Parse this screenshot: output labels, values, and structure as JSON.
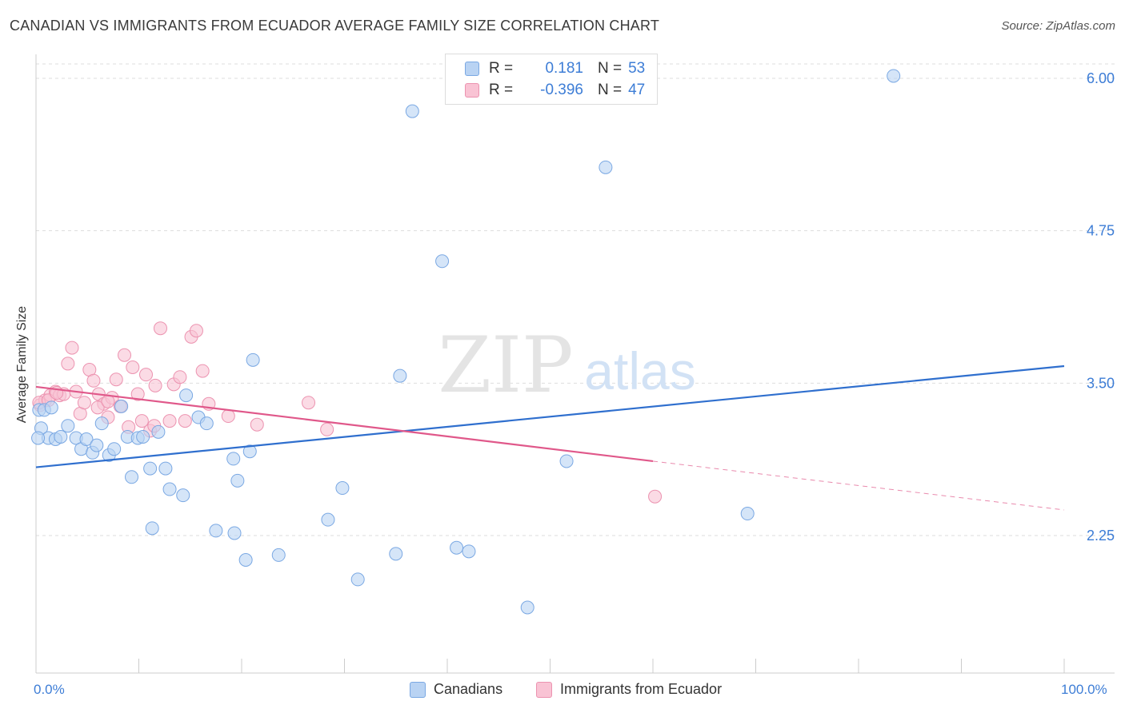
{
  "title": "CANADIAN VS IMMIGRANTS FROM ECUADOR AVERAGE FAMILY SIZE CORRELATION CHART",
  "source": "Source: ZipAtlas.com",
  "watermark": {
    "zip": "ZIP",
    "atlas": "atlas"
  },
  "legend": {
    "rows": [
      {
        "r_label": "R =",
        "r_value": "0.181",
        "n_label": "N =",
        "n_value": "53"
      },
      {
        "r_label": "R =",
        "r_value": "-0.396",
        "n_label": "N =",
        "n_value": "47"
      }
    ]
  },
  "bottom_legend": {
    "canadians": "Canadians",
    "ecuador": "Immigrants from Ecuador"
  },
  "colors": {
    "blue_fill": "#b9d3f3",
    "blue_stroke": "#7aa8e3",
    "blue_line": "#2f6fce",
    "pink_fill": "#f9c3d4",
    "pink_stroke": "#ec93b0",
    "pink_line": "#e0588a",
    "tick_label": "#3d7dd6",
    "grid": "#dddddd"
  },
  "chart_data": {
    "type": "scatter",
    "title": "CANADIAN VS IMMIGRANTS FROM ECUADOR AVERAGE FAMILY SIZE CORRELATION CHART",
    "xlabel": "",
    "ylabel": "Average Family Size",
    "xlim": [
      0,
      100
    ],
    "ylim": [
      1.1,
      6.2
    ],
    "x_tick_labels": [
      "0.0%",
      "100.0%"
    ],
    "y_ticks": [
      2.25,
      3.5,
      4.75,
      6.0
    ],
    "y_tick_labels": [
      "2.25",
      "3.50",
      "4.75",
      "6.00"
    ],
    "grid": true,
    "legend_position": "top-center",
    "series": [
      {
        "name": "Canadians",
        "r": 0.181,
        "n": 53,
        "trend": {
          "x0": 0,
          "y0": 2.81,
          "x1": 100,
          "y1": 3.64
        },
        "points": [
          [
            0.5,
            3.13
          ],
          [
            1.2,
            3.05
          ],
          [
            1.9,
            3.04
          ],
          [
            2.4,
            3.06
          ],
          [
            3.1,
            3.15
          ],
          [
            3.9,
            3.05
          ],
          [
            4.4,
            2.96
          ],
          [
            4.9,
            3.04
          ],
          [
            5.5,
            2.93
          ],
          [
            5.9,
            2.99
          ],
          [
            6.4,
            3.17
          ],
          [
            7.1,
            2.91
          ],
          [
            7.6,
            2.96
          ],
          [
            8.3,
            3.31
          ],
          [
            8.9,
            3.06
          ],
          [
            9.3,
            2.73
          ],
          [
            9.9,
            3.05
          ],
          [
            10.4,
            3.06
          ],
          [
            11.1,
            2.8
          ],
          [
            11.3,
            2.31
          ],
          [
            11.9,
            3.1
          ],
          [
            12.6,
            2.8
          ],
          [
            13.0,
            2.63
          ],
          [
            14.3,
            2.58
          ],
          [
            14.6,
            3.4
          ],
          [
            15.8,
            3.22
          ],
          [
            16.6,
            3.17
          ],
          [
            17.5,
            2.29
          ],
          [
            19.3,
            2.27
          ],
          [
            19.2,
            2.88
          ],
          [
            19.6,
            2.7
          ],
          [
            20.4,
            2.05
          ],
          [
            20.8,
            2.94
          ],
          [
            21.1,
            3.69
          ],
          [
            23.6,
            2.09
          ],
          [
            28.4,
            2.38
          ],
          [
            29.8,
            2.64
          ],
          [
            31.3,
            1.89
          ],
          [
            35.0,
            2.1
          ],
          [
            35.4,
            3.56
          ],
          [
            36.6,
            5.73
          ],
          [
            39.5,
            4.5
          ],
          [
            40.9,
            2.15
          ],
          [
            42.1,
            2.12
          ],
          [
            47.8,
            1.66
          ],
          [
            51.6,
            2.86
          ],
          [
            55.4,
            5.27
          ],
          [
            69.2,
            2.43
          ],
          [
            83.4,
            6.02
          ],
          [
            0.3,
            3.28
          ],
          [
            0.8,
            3.28
          ],
          [
            1.5,
            3.3
          ],
          [
            0.2,
            3.05
          ]
        ]
      },
      {
        "name": "Immigrants from Ecuador",
        "r": -0.396,
        "n": 47,
        "trend": {
          "x0": 0,
          "y0": 3.47,
          "x1": 60,
          "y1": 2.86,
          "dash_x1": 100,
          "dash_y1": 2.46
        },
        "points": [
          [
            0.4,
            3.32
          ],
          [
            0.9,
            3.36
          ],
          [
            1.4,
            3.4
          ],
          [
            1.9,
            3.43
          ],
          [
            2.3,
            3.4
          ],
          [
            2.7,
            3.41
          ],
          [
            3.1,
            3.66
          ],
          [
            3.5,
            3.79
          ],
          [
            3.9,
            3.43
          ],
          [
            4.3,
            3.25
          ],
          [
            4.7,
            3.34
          ],
          [
            5.2,
            3.61
          ],
          [
            5.6,
            3.52
          ],
          [
            6.1,
            3.41
          ],
          [
            6.6,
            3.33
          ],
          [
            7.0,
            3.22
          ],
          [
            7.4,
            3.38
          ],
          [
            7.8,
            3.53
          ],
          [
            8.2,
            3.31
          ],
          [
            8.6,
            3.73
          ],
          [
            9.0,
            3.14
          ],
          [
            9.4,
            3.63
          ],
          [
            9.9,
            3.41
          ],
          [
            10.3,
            3.19
          ],
          [
            10.7,
            3.57
          ],
          [
            11.1,
            3.11
          ],
          [
            11.6,
            3.48
          ],
          [
            12.1,
            3.95
          ],
          [
            13.0,
            3.19
          ],
          [
            13.4,
            3.49
          ],
          [
            14.0,
            3.55
          ],
          [
            14.5,
            3.19
          ],
          [
            15.1,
            3.88
          ],
          [
            15.6,
            3.93
          ],
          [
            16.2,
            3.6
          ],
          [
            16.8,
            3.33
          ],
          [
            18.7,
            3.23
          ],
          [
            21.5,
            3.16
          ],
          [
            26.5,
            3.34
          ],
          [
            28.3,
            3.12
          ],
          [
            60.2,
            2.57
          ],
          [
            0.3,
            3.34
          ],
          [
            1.2,
            3.36
          ],
          [
            2.0,
            3.42
          ],
          [
            11.5,
            3.15
          ],
          [
            6.0,
            3.3
          ],
          [
            7.0,
            3.35
          ]
        ]
      }
    ]
  }
}
